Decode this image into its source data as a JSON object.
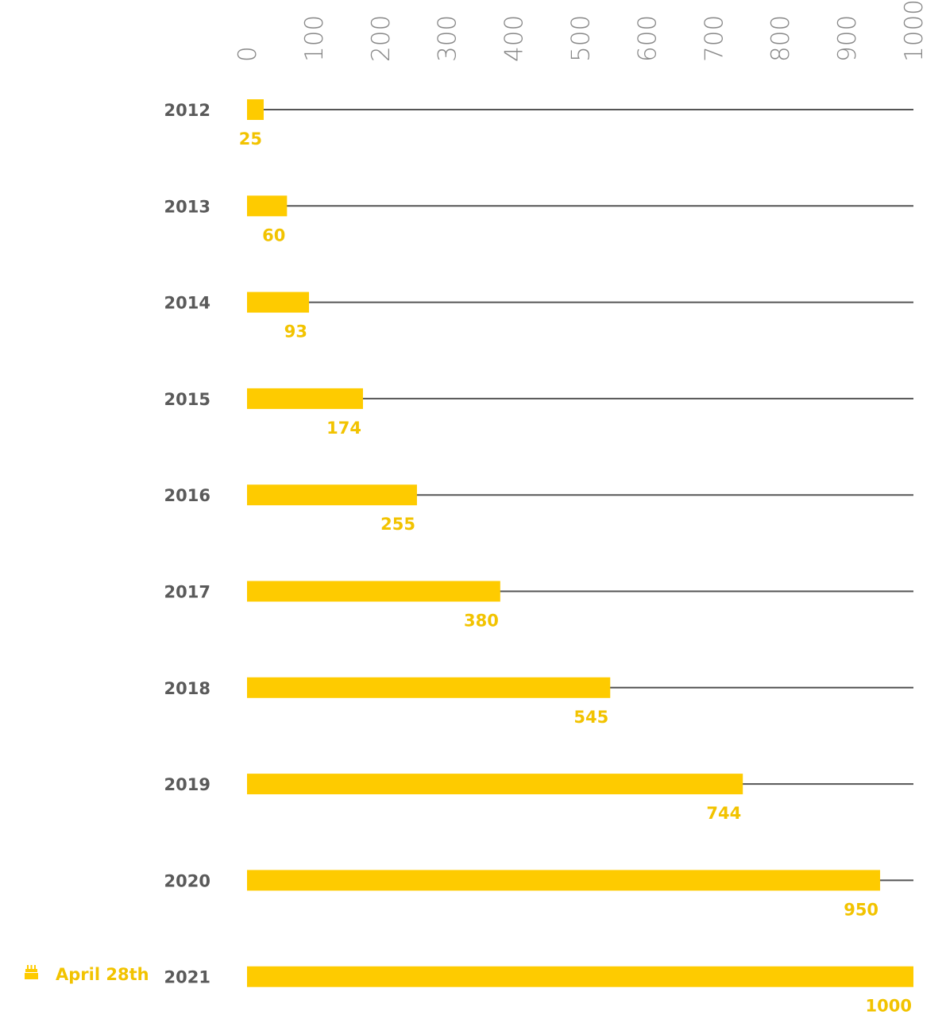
{
  "chart_data": {
    "type": "bar",
    "orientation": "horizontal",
    "categories": [
      "2012",
      "2013",
      "2014",
      "2015",
      "2016",
      "2017",
      "2018",
      "2019",
      "2020",
      "2021"
    ],
    "values": [
      25,
      60,
      93,
      174,
      255,
      380,
      545,
      744,
      950,
      1000
    ],
    "value_labels": [
      "25",
      "60",
      "93",
      "174",
      "255",
      "380",
      "545",
      "744",
      "950",
      "1000"
    ],
    "ticks": [
      "0",
      "100",
      "200",
      "300",
      "400",
      "500",
      "600",
      "700",
      "800",
      "900",
      "1000"
    ],
    "xlim": [
      0,
      1000
    ],
    "title": "",
    "xlabel": "",
    "ylabel": "",
    "grid": true,
    "annotation": {
      "category": "2021",
      "text": "April 28th",
      "icon": "birthday-cake-icon"
    },
    "colors": {
      "bar": "#fecb00",
      "value_text": "#f2c300",
      "annotation_text": "#f2c300",
      "category_text": "#5a5a5a",
      "tick_text": "#888888",
      "gridline": "#555555"
    }
  }
}
